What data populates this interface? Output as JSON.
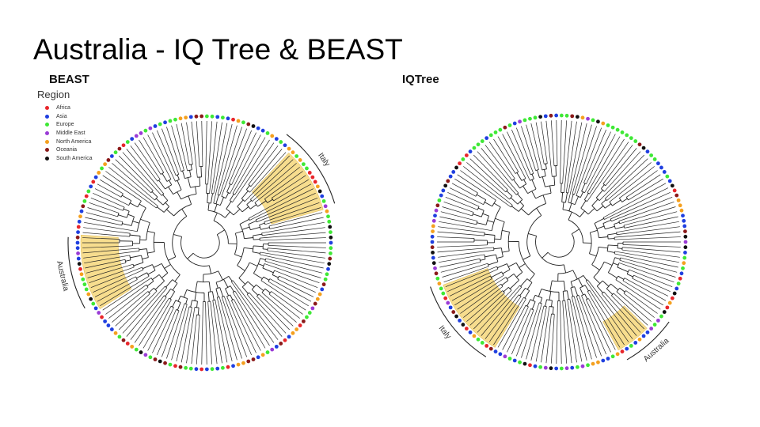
{
  "slide": {
    "title": "Australia - IQ Tree & BEAST"
  },
  "left_panel": {
    "title": "BEAST",
    "clade_labels": [
      "Italy",
      "Australia"
    ]
  },
  "right_panel": {
    "title": "IQTree",
    "clade_labels": [
      "Italy",
      "Australia"
    ]
  },
  "legend": {
    "title": "Region",
    "items": [
      {
        "label": "Africa",
        "color": "#e8262b"
      },
      {
        "label": "Asia",
        "color": "#1f3fe0"
      },
      {
        "label": "Europe",
        "color": "#3fe836"
      },
      {
        "label": "Middle East",
        "color": "#9a3bd6"
      },
      {
        "label": "North America",
        "color": "#f4a01f"
      },
      {
        "label": "Oceania",
        "color": "#8b1a1a"
      },
      {
        "label": "South America",
        "color": "#111111"
      }
    ]
  },
  "highlight_color": "#f6d77a"
}
